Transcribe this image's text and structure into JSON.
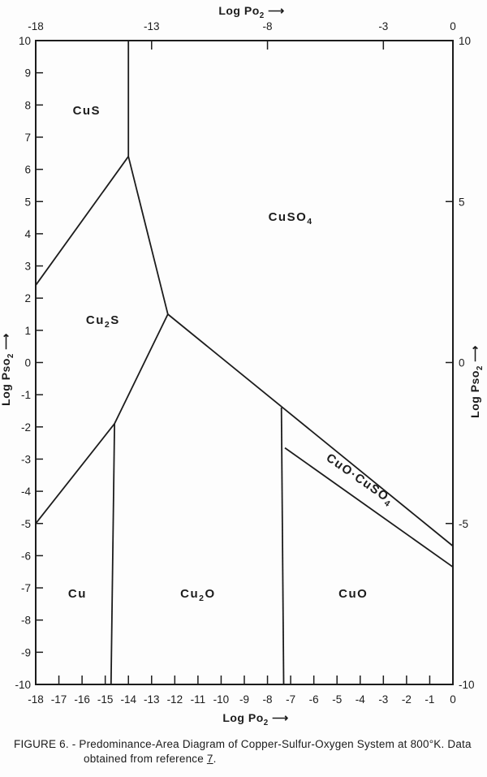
{
  "caption": {
    "line1": "FIGURE 6. - Predominance-Area Diagram of Copper-Sulfur-Oxygen System at 800°K.  Data",
    "line2_pre": "obtained from reference ",
    "ref": "7",
    "line2_post": "."
  },
  "chart_data": {
    "type": "line",
    "title": "Predominance-Area Diagram of Copper-Sulfur-Oxygen System at 800°K",
    "grid": false,
    "legend": "none",
    "x_axis": {
      "label": "Log Po2 ⟶",
      "range": [
        -18,
        0
      ],
      "bottom_tick_labels": [
        -18,
        -17,
        -16,
        -15,
        -14,
        -13,
        -12,
        -11,
        -10,
        -9,
        -8,
        -7,
        -6,
        -5,
        -4,
        -3,
        -2,
        -1,
        0
      ],
      "bottom_ticks": [
        -17,
        -16,
        -15,
        -14,
        -13,
        -12,
        -11,
        -10,
        -9,
        -8,
        -7,
        -6,
        -5,
        -4,
        -3,
        -2,
        -1
      ],
      "top_tick_labels": [
        -18,
        -13,
        -8,
        -3,
        0
      ],
      "top_ticks": [
        -13,
        -8,
        -3
      ]
    },
    "y_axis": {
      "label": "Log Pso2 ⟶",
      "range": [
        -10,
        10
      ],
      "left_tick_labels": [
        10,
        9,
        8,
        7,
        6,
        5,
        4,
        3,
        2,
        1,
        0,
        -1,
        -2,
        -3,
        -4,
        -5,
        -6,
        -7,
        -8,
        -9,
        -10
      ],
      "left_ticks": [
        9,
        8,
        7,
        6,
        5,
        4,
        3,
        2,
        1,
        0,
        -1,
        -2,
        -3,
        -4,
        -5,
        -6,
        -7,
        -8,
        -9
      ],
      "right_tick_labels": [
        10,
        5,
        0,
        -5,
        -10
      ],
      "right_ticks": [
        5,
        0,
        -5
      ]
    },
    "regions": [
      {
        "formula": "CuS",
        "x": -15.8,
        "y": 7.7,
        "rotate": 0
      },
      {
        "formula": "Cu2S",
        "x": -15.1,
        "y": 1.2,
        "rotate": 0
      },
      {
        "formula": "CuSO4",
        "x": -7.0,
        "y": 4.4,
        "rotate": 0
      },
      {
        "formula": "Cu",
        "x": -16.2,
        "y": -7.3,
        "rotate": 0
      },
      {
        "formula": "Cu2O",
        "x": -11.0,
        "y": -7.3,
        "rotate": 0
      },
      {
        "formula": "CuO",
        "x": -4.3,
        "y": -7.3,
        "rotate": 0
      },
      {
        "formula": "CuO·CuSO4",
        "x": -4.1,
        "y": -3.72,
        "rotate": 35
      }
    ],
    "boundaries": [
      {
        "name": "CuS-CuSO4",
        "points": [
          [
            -14.0,
            10.0
          ],
          [
            -14.0,
            6.4
          ]
        ]
      },
      {
        "name": "CuS-Cu2S",
        "points": [
          [
            -14.0,
            6.4
          ],
          [
            -18.0,
            2.4
          ]
        ]
      },
      {
        "name": "Cu2S-CuSO4",
        "points": [
          [
            -14.0,
            6.4
          ],
          [
            -12.3,
            1.5
          ]
        ]
      },
      {
        "name": "Cu2S-Cu2O",
        "points": [
          [
            -12.3,
            1.5
          ],
          [
            -14.6,
            -1.9
          ]
        ]
      },
      {
        "name": "Cu-Cu2S",
        "points": [
          [
            -14.6,
            -1.9
          ],
          [
            -18.0,
            -5.0
          ]
        ]
      },
      {
        "name": "Cu-Cu2O",
        "points": [
          [
            -14.6,
            -1.9
          ],
          [
            -14.75,
            -10.0
          ]
        ]
      },
      {
        "name": "CuSO4-CuO.CuSO4",
        "points": [
          [
            -12.3,
            1.5
          ],
          [
            0.0,
            -5.7
          ]
        ]
      },
      {
        "name": "Cu2O-CuO",
        "points": [
          [
            -7.4,
            -1.4
          ],
          [
            -7.3,
            -10.0
          ]
        ]
      },
      {
        "name": "CuO.CuSO4-CuO",
        "points": [
          [
            -7.25,
            -2.65
          ],
          [
            0.0,
            -6.35
          ]
        ]
      }
    ]
  }
}
